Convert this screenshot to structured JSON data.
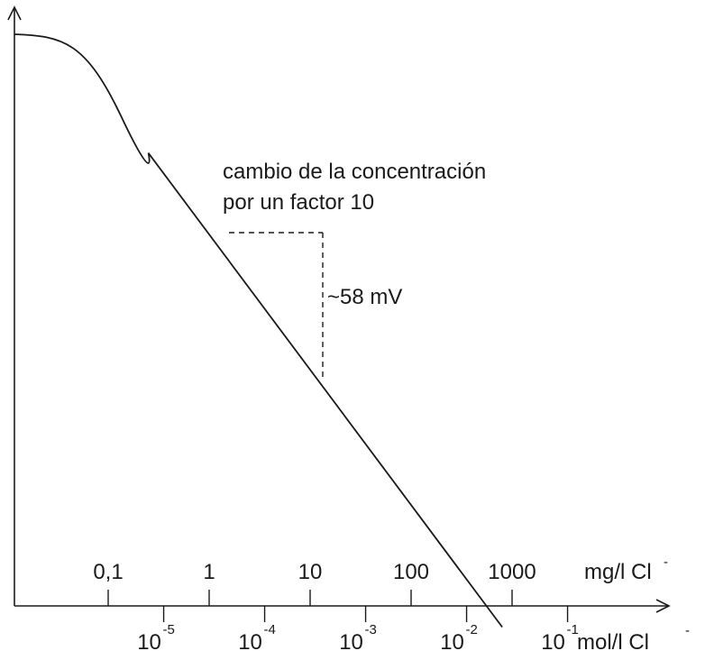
{
  "chart_data": {
    "type": "line",
    "xscale": "log",
    "x_unit_top": "mg/l Cl",
    "x_unit_top_sup": "-",
    "x_unit_bottom": "mol/l Cl",
    "x_unit_bottom_sup": "-",
    "ticks_mg": [
      "0,1",
      "1",
      "10",
      "100",
      "1000"
    ],
    "ticks_mol": [
      {
        "base": "10",
        "exp": "-5"
      },
      {
        "base": "10",
        "exp": "-4"
      },
      {
        "base": "10",
        "exp": "-3"
      },
      {
        "base": "10",
        "exp": "-2"
      },
      {
        "base": "10",
        "exp": "-1"
      }
    ],
    "xlim_mg": [
      0.006,
      13000
    ],
    "annotation": {
      "line1": "cambio de la concentración",
      "line2": "por un factor 10",
      "delta_label": "~58 mV",
      "delta_mV": 58,
      "x_from_mg": 1,
      "x_to_mg": 10
    },
    "curve": {
      "slope_mV_per_decade": -58,
      "flat_below_mg": 0.06,
      "x_end_mg": 800
    }
  }
}
